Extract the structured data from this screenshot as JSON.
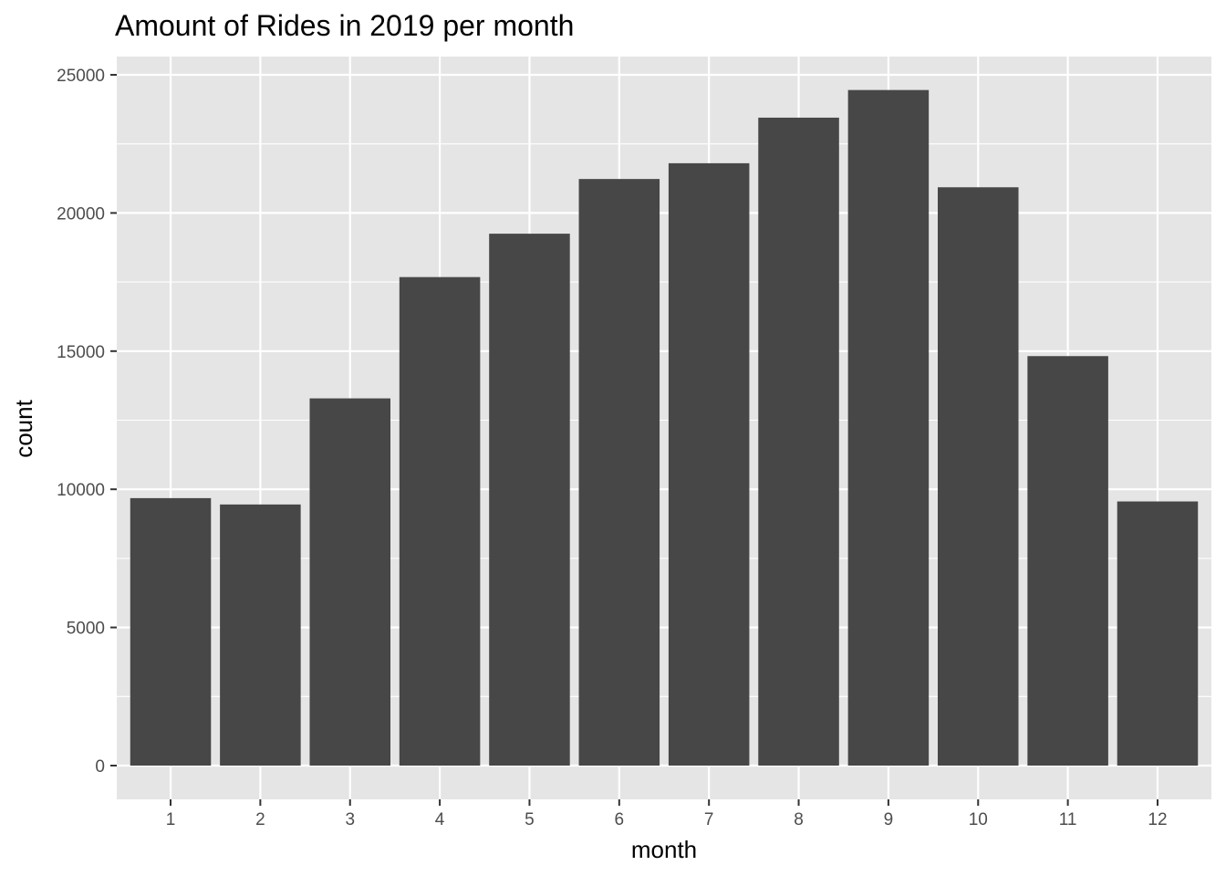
{
  "chart_data": {
    "type": "bar",
    "title": "Amount of Rides in 2019 per month",
    "xlabel": "month",
    "ylabel": "count",
    "categories": [
      "1",
      "2",
      "3",
      "4",
      "5",
      "6",
      "7",
      "8",
      "9",
      "10",
      "11",
      "12"
    ],
    "values": [
      9680,
      9450,
      13290,
      17680,
      19250,
      21230,
      21800,
      23450,
      24450,
      20930,
      14820,
      9560
    ],
    "ylim": [
      0,
      25000
    ],
    "yticks": [
      "0",
      "5000",
      "10000",
      "15000",
      "20000",
      "25000"
    ],
    "grid": true,
    "legend": "none",
    "colors": {
      "bar": "#474747",
      "panel": "#e5e5e5",
      "grid": "#ffffff",
      "tick_text": "#4d4d4d"
    }
  }
}
